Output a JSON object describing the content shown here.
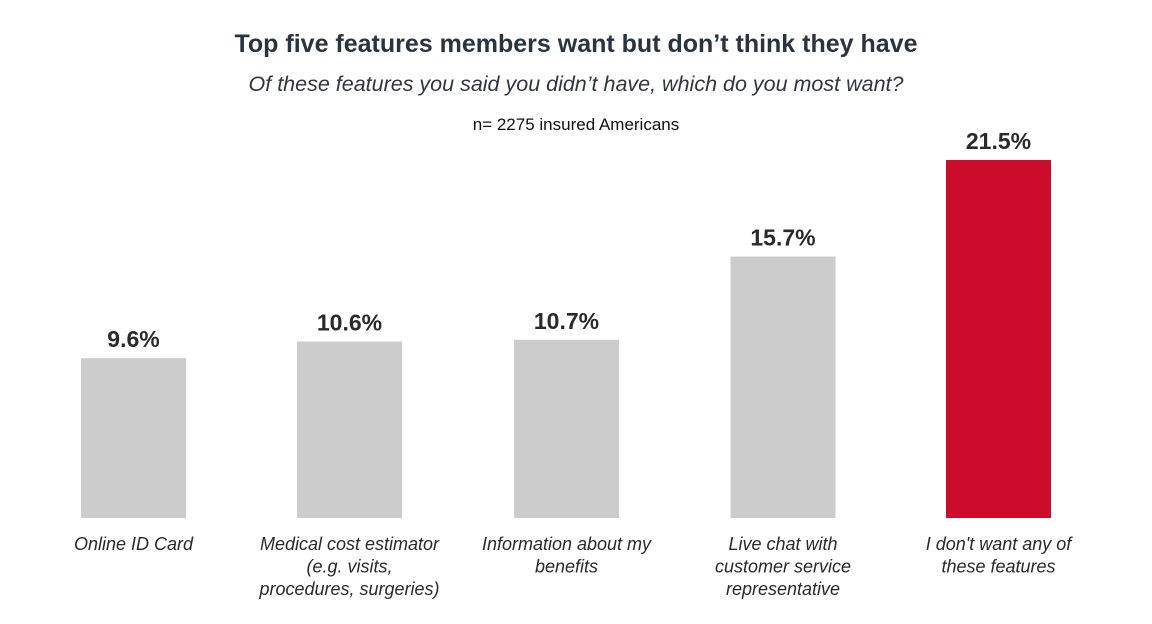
{
  "chart_data": {
    "type": "bar",
    "title": "Top five features members want but don’t think they have",
    "subtitle": "Of these features you said you didn’t have, which do you most want?",
    "sample_note": "n= 2275 insured Americans",
    "categories": [
      [
        "Online ID Card"
      ],
      [
        "Medical cost estimator",
        "(e.g. visits,",
        "procedures, surgeries)"
      ],
      [
        "Information about my",
        "benefits"
      ],
      [
        "Live chat with",
        "customer service",
        "representative"
      ],
      [
        "I don't want any of",
        "these features"
      ]
    ],
    "values": [
      9.6,
      10.6,
      10.7,
      15.7,
      21.5
    ],
    "value_labels": [
      "9.6%",
      "10.6%",
      "10.7%",
      "15.7%",
      "21.5%"
    ],
    "bar_colors": [
      "#cccccc",
      "#cccccc",
      "#cccccc",
      "#cccccc",
      "#cc0c2b"
    ],
    "xlabel": "",
    "ylabel": "",
    "ylim": [
      0,
      21.5
    ],
    "grid": false,
    "legend": "none"
  }
}
